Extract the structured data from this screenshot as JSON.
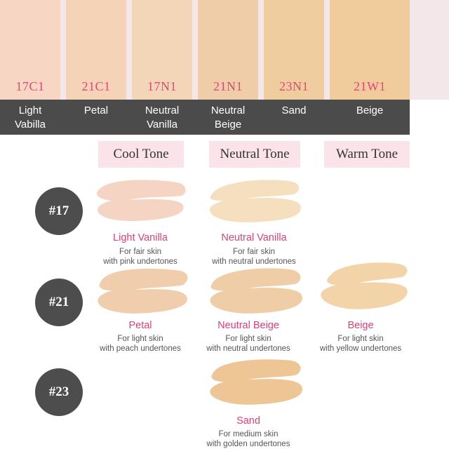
{
  "swatches": [
    {
      "code": "17C1",
      "name_line1": "Light",
      "name_line2": "Vabilla",
      "color": "#f7d6c4"
    },
    {
      "code": "21C1",
      "name_line1": "Petal",
      "name_line2": "",
      "color": "#f4d3b6"
    },
    {
      "code": "17N1",
      "name_line1": "Neutral",
      "name_line2": "Vanilla",
      "color": "#f3d5b8"
    },
    {
      "code": "21N1",
      "name_line1": "Neutral",
      "name_line2": "Beige",
      "color": "#f0cda9"
    },
    {
      "code": "23N1",
      "name_line1": "Sand",
      "name_line2": "",
      "color": "#efcd9f"
    },
    {
      "code": "21W1",
      "name_line1": "Beige",
      "name_line2": "",
      "color": "#f0cb9b"
    }
  ],
  "tones": {
    "cool": "Cool Tone",
    "neutral": "Neutral Tone",
    "warm": "Warm Tone"
  },
  "levels": [
    "#17",
    "#21",
    "#23"
  ],
  "products": {
    "light_vanilla": {
      "title": "Light Vanilla",
      "desc1": "For fair skin",
      "desc2": "with pink undertones",
      "color": "#f5d4c3"
    },
    "neutral_vanilla": {
      "title": "Neutral Vanilla",
      "desc1": "For fair skin",
      "desc2": "with neutral undertones",
      "color": "#f6dfbf"
    },
    "petal": {
      "title": "Petal",
      "desc1": "For light skin",
      "desc2": "with peach undertones",
      "color": "#f0cdad"
    },
    "neutral_beige": {
      "title": "Neutral Beige",
      "desc1": "For light skin",
      "desc2": "with neutral undertones",
      "color": "#efcda6"
    },
    "beige": {
      "title": "Beige",
      "desc1": "For light skin",
      "desc2": "with yellow undertones",
      "color": "#f2d4a8"
    },
    "sand": {
      "title": "Sand",
      "desc1": "For medium skin",
      "desc2": "with golden undertones",
      "color": "#eec595"
    }
  }
}
